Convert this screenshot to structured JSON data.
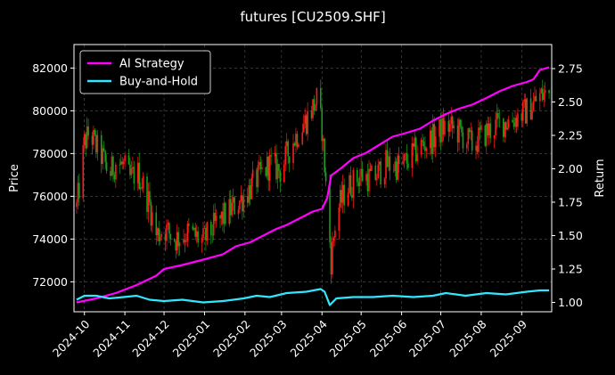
{
  "chart_data": {
    "type": "line",
    "title": "futures [CU2509.SHF]",
    "ylabel_left": "Price",
    "ylabel_right": "Return",
    "xlabel": "",
    "legend_position": "top-left",
    "grid": true,
    "x_tick_labels": [
      "2024-10",
      "2024-11",
      "2024-12",
      "2025-01",
      "2025-02",
      "2025-03",
      "2025-04",
      "2025-05",
      "2025-06",
      "2025-07",
      "2025-08",
      "2025-09"
    ],
    "y_left_ticks": [
      "72000",
      "74000",
      "76000",
      "78000",
      "80000",
      "82000"
    ],
    "y_right_ticks": [
      "1.00",
      "1.25",
      "1.50",
      "1.75",
      "2.00",
      "2.25",
      "2.50",
      "2.75"
    ],
    "ylim_left": [
      70600,
      83100
    ],
    "ylim_right": [
      0.93,
      2.93
    ],
    "xlim": [
      "2024-09-23",
      "2025-09-24"
    ],
    "colors": {
      "up": "#ff1a1a",
      "down": "#1a9e1a",
      "ai": "#ff00ff",
      "bh": "#33e6ff",
      "grid": "#555555"
    },
    "series": [
      {
        "name": "AI Strategy",
        "axis": "right",
        "color": "#ff00ff",
        "points": [
          [
            "2024-09-25",
            1.0
          ],
          [
            "2024-10-10",
            1.03
          ],
          [
            "2024-10-25",
            1.07
          ],
          [
            "2024-11-10",
            1.13
          ],
          [
            "2024-11-25",
            1.2
          ],
          [
            "2024-12-01",
            1.25
          ],
          [
            "2024-12-15",
            1.28
          ],
          [
            "2024-12-31",
            1.32
          ],
          [
            "2025-01-15",
            1.36
          ],
          [
            "2025-01-25",
            1.42
          ],
          [
            "2025-02-05",
            1.45
          ],
          [
            "2025-02-15",
            1.5
          ],
          [
            "2025-02-25",
            1.55
          ],
          [
            "2025-03-05",
            1.58
          ],
          [
            "2025-03-15",
            1.63
          ],
          [
            "2025-03-25",
            1.68
          ],
          [
            "2025-04-01",
            1.7
          ],
          [
            "2025-04-05",
            1.78
          ],
          [
            "2025-04-08",
            1.95
          ],
          [
            "2025-04-15",
            2.0
          ],
          [
            "2025-04-25",
            2.08
          ],
          [
            "2025-05-05",
            2.12
          ],
          [
            "2025-05-15",
            2.18
          ],
          [
            "2025-05-25",
            2.24
          ],
          [
            "2025-06-05",
            2.27
          ],
          [
            "2025-06-15",
            2.3
          ],
          [
            "2025-06-25",
            2.36
          ],
          [
            "2025-07-05",
            2.41
          ],
          [
            "2025-07-15",
            2.45
          ],
          [
            "2025-07-25",
            2.48
          ],
          [
            "2025-08-05",
            2.53
          ],
          [
            "2025-08-15",
            2.58
          ],
          [
            "2025-08-25",
            2.62
          ],
          [
            "2025-09-05",
            2.65
          ],
          [
            "2025-09-10",
            2.67
          ],
          [
            "2025-09-15",
            2.74
          ],
          [
            "2025-09-22",
            2.76
          ]
        ]
      },
      {
        "name": "Buy-and-Hold",
        "axis": "right",
        "color": "#33e6ff",
        "points": [
          [
            "2024-09-25",
            1.02
          ],
          [
            "2024-10-01",
            1.05
          ],
          [
            "2024-10-10",
            1.05
          ],
          [
            "2024-10-20",
            1.03
          ],
          [
            "2024-10-31",
            1.04
          ],
          [
            "2024-11-10",
            1.05
          ],
          [
            "2024-11-20",
            1.02
          ],
          [
            "2024-12-01",
            1.01
          ],
          [
            "2024-12-15",
            1.02
          ],
          [
            "2024-12-31",
            1.0
          ],
          [
            "2025-01-15",
            1.01
          ],
          [
            "2025-01-31",
            1.03
          ],
          [
            "2025-02-10",
            1.05
          ],
          [
            "2025-02-20",
            1.04
          ],
          [
            "2025-03-05",
            1.07
          ],
          [
            "2025-03-20",
            1.08
          ],
          [
            "2025-03-31",
            1.1
          ],
          [
            "2025-04-03",
            1.08
          ],
          [
            "2025-04-07",
            0.98
          ],
          [
            "2025-04-12",
            1.03
          ],
          [
            "2025-04-25",
            1.04
          ],
          [
            "2025-05-10",
            1.04
          ],
          [
            "2025-05-25",
            1.05
          ],
          [
            "2025-06-10",
            1.04
          ],
          [
            "2025-06-25",
            1.05
          ],
          [
            "2025-07-05",
            1.07
          ],
          [
            "2025-07-20",
            1.05
          ],
          [
            "2025-08-05",
            1.07
          ],
          [
            "2025-08-20",
            1.06
          ],
          [
            "2025-09-05",
            1.08
          ],
          [
            "2025-09-15",
            1.09
          ],
          [
            "2025-09-22",
            1.09
          ]
        ]
      }
    ],
    "price_range_path": [
      [
        "2024-09-25",
        75500
      ],
      [
        "2024-09-28",
        76800
      ],
      [
        "2024-10-01",
        78500
      ],
      [
        "2024-10-05",
        79000
      ],
      [
        "2024-10-10",
        78300
      ],
      [
        "2024-10-15",
        77800
      ],
      [
        "2024-10-20",
        77000
      ],
      [
        "2024-10-25",
        77600
      ],
      [
        "2024-10-31",
        77400
      ],
      [
        "2024-11-05",
        76800
      ],
      [
        "2024-11-10",
        77200
      ],
      [
        "2024-11-15",
        76500
      ],
      [
        "2024-11-20",
        75600
      ],
      [
        "2024-11-25",
        74200
      ],
      [
        "2024-12-01",
        74500
      ],
      [
        "2024-12-10",
        74000
      ],
      [
        "2024-12-20",
        74300
      ],
      [
        "2024-12-31",
        73900
      ],
      [
        "2025-01-10",
        74700
      ],
      [
        "2025-01-20",
        75300
      ],
      [
        "2025-01-31",
        76000
      ],
      [
        "2025-02-10",
        76800
      ],
      [
        "2025-02-20",
        77500
      ],
      [
        "2025-02-28",
        77200
      ],
      [
        "2025-03-10",
        78600
      ],
      [
        "2025-03-20",
        79600
      ],
      [
        "2025-03-28",
        80500
      ],
      [
        "2025-04-01",
        79200
      ],
      [
        "2025-04-04",
        76500
      ],
      [
        "2025-04-08",
        73000
      ],
      [
        "2025-04-12",
        75200
      ],
      [
        "2025-04-20",
        76400
      ],
      [
        "2025-05-01",
        77000
      ],
      [
        "2025-05-10",
        76800
      ],
      [
        "2025-05-20",
        77500
      ],
      [
        "2025-06-01",
        77400
      ],
      [
        "2025-06-15",
        78300
      ],
      [
        "2025-06-25",
        78700
      ],
      [
        "2025-07-05",
        79300
      ],
      [
        "2025-07-15",
        79000
      ],
      [
        "2025-07-25",
        78400
      ],
      [
        "2025-08-05",
        79000
      ],
      [
        "2025-08-15",
        79400
      ],
      [
        "2025-08-25",
        79600
      ],
      [
        "2025-09-05",
        80000
      ],
      [
        "2025-09-15",
        80700
      ],
      [
        "2025-09-22",
        80800
      ]
    ]
  }
}
